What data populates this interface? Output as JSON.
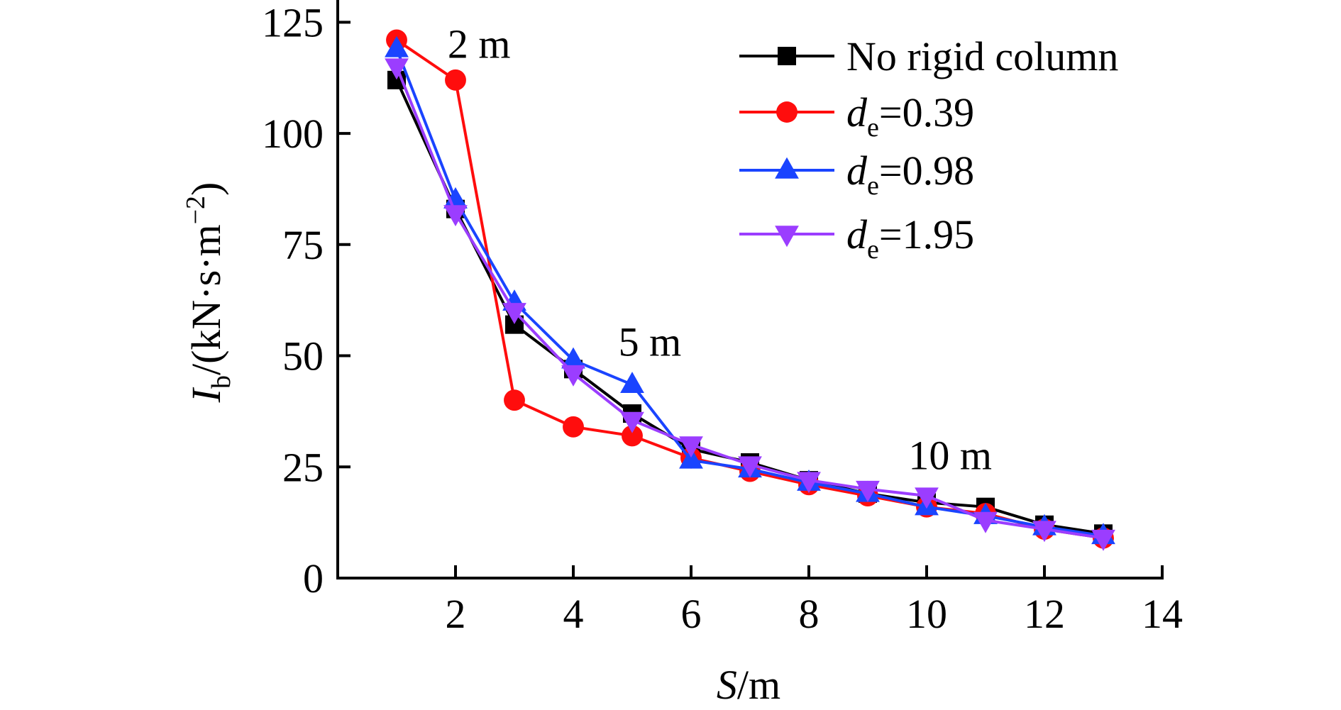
{
  "chart_data": {
    "type": "line",
    "xlabel": {
      "italic": "S",
      "rest": "/m"
    },
    "ylabel": {
      "italic": "I",
      "sub": "b",
      "rest": "/(kN·s·m",
      "sup": "−2",
      "close": ")"
    },
    "xlim": [
      0,
      14
    ],
    "ylim": [
      0,
      130
    ],
    "xticks": [
      2,
      4,
      6,
      8,
      10,
      12,
      14
    ],
    "yticks": [
      0,
      25,
      50,
      75,
      100,
      125
    ],
    "grid": false,
    "legend_position": "top-right",
    "x": [
      1,
      2,
      3,
      4,
      5,
      6,
      7,
      8,
      9,
      10,
      11,
      12,
      13
    ],
    "series": [
      {
        "name": "No rigid column",
        "label": {
          "text": "No rigid column"
        },
        "color": "#000000",
        "marker": "square",
        "values": [
          112,
          83,
          57,
          47,
          37,
          29,
          26,
          22,
          19,
          17,
          16,
          12,
          10
        ]
      },
      {
        "name": "de=0.39",
        "label": {
          "italic": "d",
          "sub": "e",
          "rest": "=0.39"
        },
        "color": "#ff0d0d",
        "marker": "circle",
        "values": [
          121,
          112,
          40,
          34,
          32,
          27,
          24,
          21,
          18.5,
          16,
          14.5,
          11,
          9
        ]
      },
      {
        "name": "de=0.98",
        "label": {
          "italic": "d",
          "sub": "e",
          "rest": "=0.98"
        },
        "color": "#1a44ff",
        "marker": "triangle-up",
        "values": [
          119,
          85,
          62,
          49,
          43.5,
          26.5,
          24.5,
          21.5,
          19,
          16,
          14,
          11.5,
          9.5
        ]
      },
      {
        "name": "de=1.95",
        "label": {
          "italic": "d",
          "sub": "e",
          "rest": "=1.95"
        },
        "color": "#9b3dff",
        "marker": "triangle-down",
        "values": [
          115,
          82,
          60,
          46,
          35.5,
          30,
          25.5,
          22,
          20,
          18.5,
          13,
          11,
          9
        ]
      }
    ],
    "annotations": [
      {
        "text": "2 m",
        "x": 2.4,
        "y": 117
      },
      {
        "text": "5 m",
        "x": 5.3,
        "y": 50
      },
      {
        "text": "10 m",
        "x": 10.4,
        "y": 24.5
      }
    ]
  }
}
